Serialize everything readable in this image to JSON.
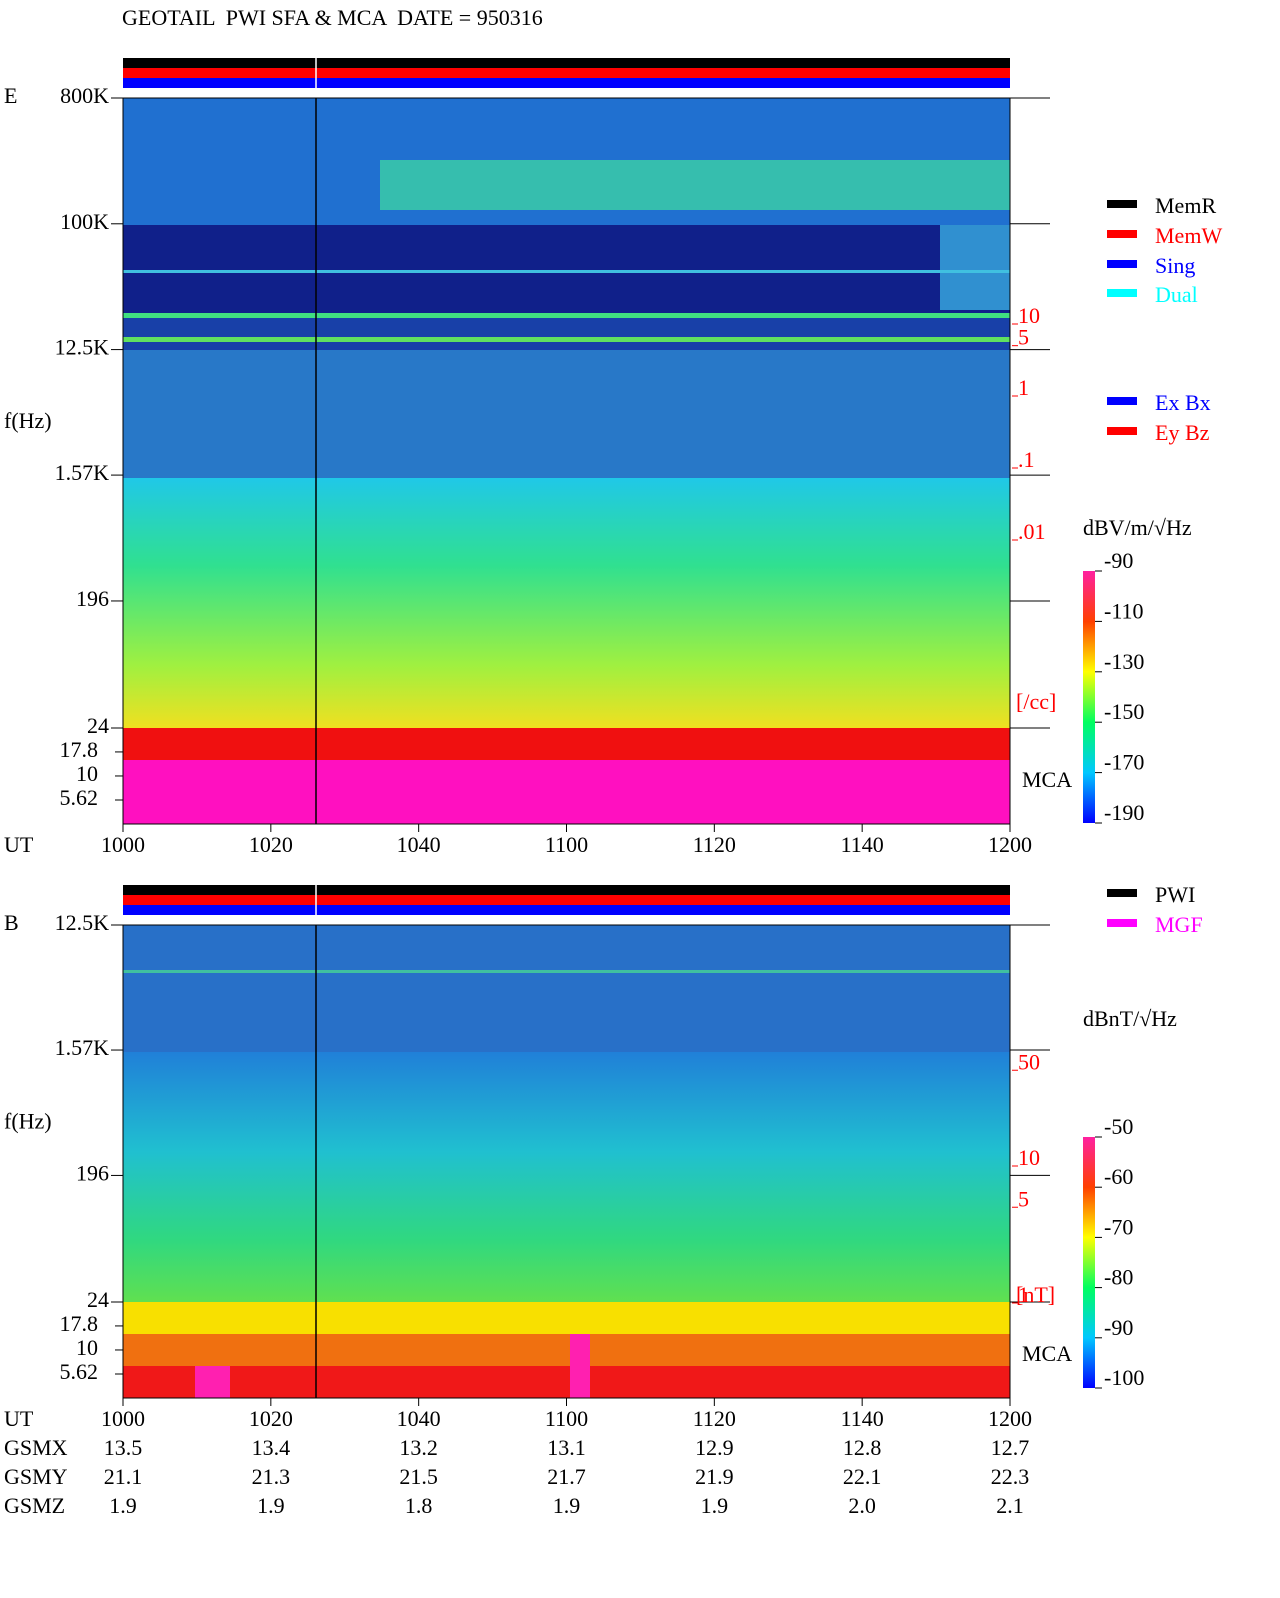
{
  "chart_data": [
    {
      "type": "spectrogram",
      "title": "GEOTAIL  PWI SFA & MCA  DATE = 950316",
      "panel_label": "E",
      "y_label": "f(Hz)",
      "x_label": "UT",
      "log_y": true,
      "xlim": [
        0,
        120
      ],
      "xticks": [
        {
          "value": 0,
          "label": "1000"
        },
        {
          "value": 20,
          "label": "1020"
        },
        {
          "value": 40,
          "label": "1040"
        },
        {
          "value": 60,
          "label": "1100"
        },
        {
          "value": 80,
          "label": "1120"
        },
        {
          "value": 100,
          "label": "1140"
        },
        {
          "value": 120,
          "label": "1200"
        }
      ],
      "ylim": [
        24,
        800000
      ],
      "yticks": [
        {
          "value": 800000,
          "label": "800K"
        },
        {
          "value": 100000,
          "label": "100K"
        },
        {
          "value": 12500,
          "label": "12.5K"
        },
        {
          "value": 1570,
          "label": "1.57K"
        },
        196,
        24
      ],
      "mca_label": "MCA",
      "mca_ylim": [
        3.16,
        31.6
      ],
      "mca_yticks": [
        17.8,
        10,
        5.62
      ],
      "density_ylim": [
        0.001,
        10000
      ],
      "density_yticks": [
        10,
        5,
        1,
        {
          "value": 0.1,
          "label": ".1"
        },
        {
          "value": 0.01,
          "label": ".01"
        }
      ],
      "density_unit": "[/cc]",
      "density_color": "#ff0000",
      "colorbar_label": "dBV/m/√Hz",
      "clim": [
        -190,
        -90
      ],
      "cticks": [
        -90,
        -110,
        -130,
        -150,
        -170,
        -190
      ],
      "legend": [
        {
          "name": "MemR",
          "color": "#000000"
        },
        {
          "name": "MemW",
          "color": "#ff0000"
        },
        {
          "name": "Sing",
          "color": "#0000ff"
        },
        {
          "name": "Dual",
          "color": "#00ffff"
        }
      ],
      "legend2": [
        {
          "name": "Ex Bx",
          "color": "#0000ff"
        },
        {
          "name": "Ey Bz",
          "color": "#ff0000"
        }
      ]
    },
    {
      "type": "spectrogram",
      "panel_label": "B",
      "y_label": "f(Hz)",
      "x_label": "UT",
      "log_y": true,
      "xlim": [
        0,
        120
      ],
      "xticks": [
        {
          "value": 0,
          "label": "1000"
        },
        {
          "value": 20,
          "label": "1020"
        },
        {
          "value": 40,
          "label": "1040"
        },
        {
          "value": 60,
          "label": "1100"
        },
        {
          "value": 80,
          "label": "1120"
        },
        {
          "value": 100,
          "label": "1140"
        },
        {
          "value": 120,
          "label": "1200"
        }
      ],
      "ylim": [
        24,
        12500
      ],
      "yticks": [
        {
          "value": 12500,
          "label": "12.5K"
        },
        {
          "value": 1570,
          "label": "1.57K"
        },
        196,
        24
      ],
      "mca_label": "MCA",
      "mca_ylim": [
        3.16,
        31.6
      ],
      "mca_yticks": [
        17.8,
        10,
        5.62
      ],
      "density_ylim": [
        1,
        100
      ],
      "density_yticks": [
        50,
        10,
        5,
        1
      ],
      "density_unit": "[nT]",
      "density_color": "#ff0000",
      "colorbar_label": "dBnT/√Hz",
      "clim": [
        -100,
        -50
      ],
      "cticks": [
        -50,
        -60,
        -70,
        -80,
        -90,
        -100
      ],
      "legend": [
        {
          "name": "PWI",
          "color": "#000000"
        },
        {
          "name": "MGF",
          "color": "#ff00ff"
        }
      ]
    }
  ],
  "orbit": {
    "rows": [
      {
        "name": "GSMX",
        "values": [
          "13.5",
          "13.4",
          "13.2",
          "13.1",
          "12.9",
          "12.8",
          "12.7"
        ]
      },
      {
        "name": "GSMY",
        "values": [
          "21.1",
          "21.3",
          "21.5",
          "21.7",
          "21.9",
          "22.1",
          "22.3"
        ]
      },
      {
        "name": "GSMZ",
        "values": [
          "1.9",
          "1.9",
          "1.8",
          "1.9",
          "1.9",
          "2.0",
          "2.1"
        ]
      }
    ]
  }
}
